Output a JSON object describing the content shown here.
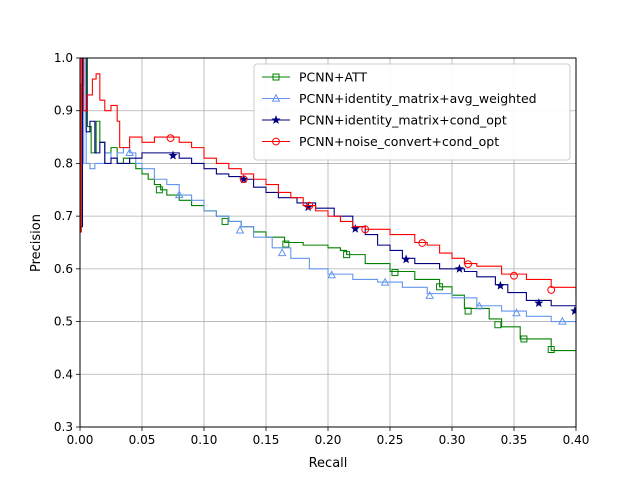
{
  "chart_data": {
    "type": "line",
    "title": "",
    "xlabel": "Recall",
    "ylabel": "Precision",
    "xlim": [
      0.0,
      0.4
    ],
    "ylim": [
      0.3,
      1.0
    ],
    "x_ticks": [
      "0.00",
      "0.05",
      "0.10",
      "0.15",
      "0.20",
      "0.25",
      "0.30",
      "0.35",
      "0.40"
    ],
    "y_ticks": [
      "0.3",
      "0.4",
      "0.5",
      "0.6",
      "0.7",
      "0.8",
      "0.9",
      "1.0"
    ],
    "grid": true,
    "legend_position": "top-right",
    "series": [
      {
        "name": "PCNN+ATT",
        "color": "#008000",
        "marker": "square",
        "points": [
          [
            0.0,
            0.67
          ],
          [
            0.001,
            0.95
          ],
          [
            0.003,
            1.0
          ],
          [
            0.006,
            0.87
          ],
          [
            0.009,
            0.82
          ],
          [
            0.013,
            0.88
          ],
          [
            0.016,
            0.84
          ],
          [
            0.02,
            0.82
          ],
          [
            0.025,
            0.83
          ],
          [
            0.03,
            0.8
          ],
          [
            0.035,
            0.81
          ],
          [
            0.04,
            0.8
          ],
          [
            0.045,
            0.79
          ],
          [
            0.05,
            0.78
          ],
          [
            0.055,
            0.77
          ],
          [
            0.06,
            0.76
          ],
          [
            0.065,
            0.75
          ],
          [
            0.07,
            0.74
          ],
          [
            0.08,
            0.73
          ],
          [
            0.09,
            0.72
          ],
          [
            0.1,
            0.71
          ],
          [
            0.11,
            0.7
          ],
          [
            0.12,
            0.69
          ],
          [
            0.13,
            0.68
          ],
          [
            0.14,
            0.67
          ],
          [
            0.15,
            0.66
          ],
          [
            0.165,
            0.65
          ],
          [
            0.18,
            0.645
          ],
          [
            0.2,
            0.64
          ],
          [
            0.21,
            0.635
          ],
          [
            0.215,
            0.627
          ],
          [
            0.23,
            0.61
          ],
          [
            0.25,
            0.595
          ],
          [
            0.27,
            0.58
          ],
          [
            0.29,
            0.566
          ],
          [
            0.3,
            0.55
          ],
          [
            0.31,
            0.525
          ],
          [
            0.33,
            0.505
          ],
          [
            0.34,
            0.49
          ],
          [
            0.355,
            0.467
          ],
          [
            0.38,
            0.445
          ],
          [
            0.4,
            0.43
          ]
        ],
        "markers": [
          [
            0.064,
            0.75
          ],
          [
            0.117,
            0.69
          ],
          [
            0.166,
            0.647
          ],
          [
            0.215,
            0.627
          ],
          [
            0.254,
            0.593
          ],
          [
            0.29,
            0.566
          ],
          [
            0.313,
            0.52
          ],
          [
            0.337,
            0.494
          ],
          [
            0.358,
            0.467
          ],
          [
            0.38,
            0.447
          ]
        ]
      },
      {
        "name": "PCNN+identity_matrix+avg_weighted",
        "color": "#6495ED",
        "marker": "triangle",
        "points": [
          [
            0.0,
            0.8
          ],
          [
            0.003,
            1.0
          ],
          [
            0.005,
            0.8
          ],
          [
            0.008,
            0.79
          ],
          [
            0.012,
            0.8
          ],
          [
            0.016,
            0.8
          ],
          [
            0.02,
            0.82
          ],
          [
            0.025,
            0.81
          ],
          [
            0.03,
            0.82
          ],
          [
            0.035,
            0.83
          ],
          [
            0.04,
            0.82
          ],
          [
            0.045,
            0.8
          ],
          [
            0.05,
            0.79
          ],
          [
            0.06,
            0.77
          ],
          [
            0.07,
            0.76
          ],
          [
            0.08,
            0.74
          ],
          [
            0.09,
            0.73
          ],
          [
            0.1,
            0.71
          ],
          [
            0.11,
            0.7
          ],
          [
            0.12,
            0.69
          ],
          [
            0.13,
            0.68
          ],
          [
            0.14,
            0.66
          ],
          [
            0.155,
            0.64
          ],
          [
            0.17,
            0.62
          ],
          [
            0.185,
            0.6
          ],
          [
            0.2,
            0.59
          ],
          [
            0.22,
            0.58
          ],
          [
            0.24,
            0.575
          ],
          [
            0.26,
            0.565
          ],
          [
            0.28,
            0.553
          ],
          [
            0.3,
            0.545
          ],
          [
            0.32,
            0.53
          ],
          [
            0.34,
            0.52
          ],
          [
            0.36,
            0.51
          ],
          [
            0.38,
            0.5
          ],
          [
            0.4,
            0.493
          ]
        ],
        "markers": [
          [
            0.04,
            0.82
          ],
          [
            0.08,
            0.74
          ],
          [
            0.129,
            0.673
          ],
          [
            0.163,
            0.63
          ],
          [
            0.203,
            0.588
          ],
          [
            0.246,
            0.574
          ],
          [
            0.282,
            0.549
          ],
          [
            0.322,
            0.529
          ],
          [
            0.352,
            0.516
          ],
          [
            0.389,
            0.5
          ]
        ]
      },
      {
        "name": "PCNN+identity_matrix+cond_opt",
        "color": "#000080",
        "marker": "star",
        "points": [
          [
            0.0,
            0.68
          ],
          [
            0.002,
            1.0
          ],
          [
            0.005,
            0.86
          ],
          [
            0.008,
            0.88
          ],
          [
            0.012,
            0.82
          ],
          [
            0.016,
            0.84
          ],
          [
            0.02,
            0.8
          ],
          [
            0.025,
            0.81
          ],
          [
            0.03,
            0.8
          ],
          [
            0.04,
            0.81
          ],
          [
            0.05,
            0.82
          ],
          [
            0.06,
            0.82
          ],
          [
            0.07,
            0.82
          ],
          [
            0.08,
            0.81
          ],
          [
            0.09,
            0.8
          ],
          [
            0.1,
            0.79
          ],
          [
            0.11,
            0.78
          ],
          [
            0.12,
            0.775
          ],
          [
            0.13,
            0.77
          ],
          [
            0.14,
            0.755
          ],
          [
            0.15,
            0.745
          ],
          [
            0.16,
            0.735
          ],
          [
            0.175,
            0.725
          ],
          [
            0.19,
            0.715
          ],
          [
            0.205,
            0.7
          ],
          [
            0.22,
            0.68
          ],
          [
            0.23,
            0.665
          ],
          [
            0.24,
            0.645
          ],
          [
            0.25,
            0.635
          ],
          [
            0.26,
            0.62
          ],
          [
            0.27,
            0.61
          ],
          [
            0.29,
            0.6
          ],
          [
            0.31,
            0.595
          ],
          [
            0.32,
            0.585
          ],
          [
            0.335,
            0.57
          ],
          [
            0.345,
            0.555
          ],
          [
            0.36,
            0.54
          ],
          [
            0.38,
            0.53
          ],
          [
            0.4,
            0.52
          ]
        ],
        "markers": [
          [
            0.075,
            0.815
          ],
          [
            0.132,
            0.77
          ],
          [
            0.184,
            0.717
          ],
          [
            0.222,
            0.676
          ],
          [
            0.263,
            0.618
          ],
          [
            0.306,
            0.6
          ],
          [
            0.339,
            0.568
          ],
          [
            0.37,
            0.535
          ],
          [
            0.399,
            0.52
          ]
        ]
      },
      {
        "name": "PCNN+noise_convert+cond_opt",
        "color": "#FF0000",
        "marker": "circle",
        "points": [
          [
            0.0,
            0.67
          ],
          [
            0.001,
            1.0
          ],
          [
            0.003,
            0.9
          ],
          [
            0.006,
            0.93
          ],
          [
            0.01,
            0.96
          ],
          [
            0.013,
            0.97
          ],
          [
            0.016,
            0.92
          ],
          [
            0.02,
            0.9
          ],
          [
            0.025,
            0.91
          ],
          [
            0.03,
            0.88
          ],
          [
            0.032,
            0.83
          ],
          [
            0.04,
            0.85
          ],
          [
            0.05,
            0.84
          ],
          [
            0.06,
            0.85
          ],
          [
            0.07,
            0.85
          ],
          [
            0.08,
            0.84
          ],
          [
            0.09,
            0.83
          ],
          [
            0.1,
            0.81
          ],
          [
            0.11,
            0.8
          ],
          [
            0.12,
            0.79
          ],
          [
            0.13,
            0.78
          ],
          [
            0.14,
            0.77
          ],
          [
            0.15,
            0.76
          ],
          [
            0.16,
            0.745
          ],
          [
            0.17,
            0.735
          ],
          [
            0.18,
            0.72
          ],
          [
            0.19,
            0.71
          ],
          [
            0.2,
            0.7
          ],
          [
            0.21,
            0.69
          ],
          [
            0.22,
            0.68
          ],
          [
            0.23,
            0.675
          ],
          [
            0.25,
            0.665
          ],
          [
            0.27,
            0.65
          ],
          [
            0.28,
            0.645
          ],
          [
            0.29,
            0.63
          ],
          [
            0.3,
            0.62
          ],
          [
            0.31,
            0.61
          ],
          [
            0.32,
            0.605
          ],
          [
            0.34,
            0.59
          ],
          [
            0.36,
            0.58
          ],
          [
            0.38,
            0.565
          ],
          [
            0.4,
            0.55
          ]
        ],
        "markers": [
          [
            0.073,
            0.848
          ],
          [
            0.132,
            0.77
          ],
          [
            0.185,
            0.72
          ],
          [
            0.23,
            0.675
          ],
          [
            0.276,
            0.649
          ],
          [
            0.313,
            0.609
          ],
          [
            0.35,
            0.587
          ],
          [
            0.38,
            0.56
          ]
        ]
      }
    ]
  }
}
